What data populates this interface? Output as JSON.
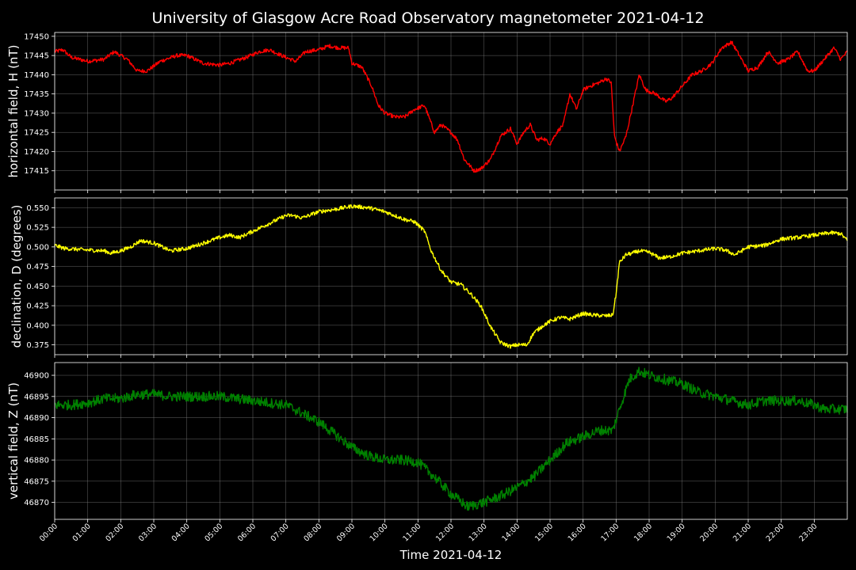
{
  "title": "University of Glasgow Acre Road Observatory magnetometer 2021-04-12",
  "chart_data": {
    "type": "line",
    "title": "University of Glasgow Acre Road Observatory magnetometer 2021-04-12",
    "xlabel": "Time 2021-04-12",
    "x_unit": "hour of day",
    "xlim": [
      0,
      24
    ],
    "x_tick_labels": [
      "00:00",
      "01:00",
      "02:00",
      "03:00",
      "04:00",
      "05:00",
      "06:00",
      "07:00",
      "08:00",
      "09:00",
      "10:00",
      "11:00",
      "12:00",
      "13:00",
      "14:00",
      "15:00",
      "16:00",
      "17:00",
      "18:00",
      "19:00",
      "20:00",
      "21:00",
      "22:00",
      "23:00"
    ],
    "grid": true,
    "panels": [
      {
        "ylabel": "horizontal field, H (nT)",
        "color": "#ff0000",
        "ylim": [
          17410,
          17451
        ],
        "yticks": [
          17415,
          17420,
          17425,
          17430,
          17435,
          17440,
          17445,
          17450
        ],
        "tick_labels": [
          "17415",
          "17420",
          "17425",
          "17430",
          "17435",
          "17440",
          "17445",
          "17450"
        ],
        "noise": 0.5,
        "x": [
          0,
          0.25,
          0.5,
          1.0,
          1.5,
          1.8,
          2.2,
          2.5,
          2.8,
          3.2,
          3.7,
          4.0,
          4.5,
          5.0,
          5.3,
          5.8,
          6.2,
          6.5,
          7.0,
          7.3,
          7.6,
          8.0,
          8.3,
          8.6,
          8.9,
          9.0,
          9.3,
          9.6,
          9.8,
          10.0,
          10.3,
          10.6,
          10.9,
          11.2,
          11.5,
          11.7,
          12.0,
          12.2,
          12.4,
          12.7,
          12.9,
          13.2,
          13.5,
          13.8,
          14.0,
          14.2,
          14.4,
          14.6,
          14.8,
          15.0,
          15.2,
          15.4,
          15.6,
          15.8,
          16.0,
          16.2,
          16.5,
          16.7,
          16.85,
          16.95,
          17.1,
          17.3,
          17.5,
          17.7,
          17.9,
          18.2,
          18.5,
          18.7,
          19.0,
          19.3,
          19.6,
          19.9,
          20.2,
          20.5,
          20.8,
          21.0,
          21.3,
          21.6,
          21.9,
          22.2,
          22.5,
          22.8,
          23.0,
          23.3,
          23.6,
          23.8,
          24.0
        ],
        "y": [
          17446,
          17446.5,
          17444.5,
          17443.5,
          17444,
          17446,
          17444,
          17441,
          17441,
          17443.5,
          17445,
          17445,
          17443,
          17442.5,
          17443,
          17444.5,
          17446,
          17446.5,
          17444.5,
          17443.5,
          17446,
          17446.5,
          17447.5,
          17447,
          17447,
          17443,
          17442,
          17437,
          17432,
          17430,
          17429,
          17429,
          17431,
          17432,
          17425,
          17427,
          17425,
          17423,
          17418,
          17415,
          17415.5,
          17418,
          17424,
          17426,
          17422,
          17425,
          17427,
          17423,
          17423.5,
          17422,
          17425,
          17427,
          17435,
          17431,
          17436,
          17437,
          17438,
          17439,
          17438,
          17424,
          17420,
          17424,
          17432,
          17440,
          17436,
          17435,
          17433,
          17434,
          17437,
          17440,
          17441,
          17443,
          17447,
          17448.5,
          17444,
          17441,
          17442,
          17446,
          17443,
          17444,
          17446,
          17441,
          17441,
          17444,
          17447,
          17444,
          17446
        ]
      },
      {
        "ylabel": "declination, D (degrees)",
        "color": "#ffff00",
        "ylim": [
          0.3625,
          0.5625
        ],
        "yticks": [
          0.375,
          0.4,
          0.425,
          0.45,
          0.475,
          0.5,
          0.525,
          0.55
        ],
        "tick_labels": [
          "0.375",
          "0.400",
          "0.425",
          "0.450",
          "0.475",
          "0.500",
          "0.525",
          "0.550"
        ],
        "noise": 0.0025,
        "x": [
          0,
          0.3,
          1.0,
          1.5,
          1.7,
          2.0,
          2.3,
          2.6,
          3.0,
          3.5,
          4.0,
          4.3,
          5.0,
          5.3,
          5.6,
          6.0,
          6.5,
          7.0,
          7.2,
          7.5,
          8.0,
          8.5,
          9.0,
          9.5,
          10.0,
          10.3,
          10.6,
          10.9,
          11.2,
          11.4,
          11.7,
          12.0,
          12.3,
          12.6,
          12.9,
          13.2,
          13.5,
          13.8,
          14.0,
          14.3,
          14.5,
          14.8,
          15.0,
          15.3,
          15.6,
          16.0,
          16.3,
          16.7,
          16.9,
          17.0,
          17.1,
          17.3,
          17.5,
          17.7,
          18.0,
          18.3,
          18.6,
          19.0,
          19.5,
          20.0,
          20.3,
          20.6,
          21.0,
          21.5,
          22.0,
          22.5,
          23.0,
          23.5,
          23.8,
          24.0
        ],
        "y": [
          0.502,
          0.498,
          0.496,
          0.495,
          0.492,
          0.495,
          0.5,
          0.508,
          0.505,
          0.495,
          0.498,
          0.502,
          0.512,
          0.515,
          0.512,
          0.52,
          0.53,
          0.54,
          0.54,
          0.537,
          0.545,
          0.548,
          0.552,
          0.55,
          0.545,
          0.54,
          0.535,
          0.532,
          0.52,
          0.495,
          0.47,
          0.455,
          0.452,
          0.44,
          0.425,
          0.398,
          0.378,
          0.373,
          0.375,
          0.375,
          0.39,
          0.4,
          0.405,
          0.41,
          0.408,
          0.415,
          0.413,
          0.412,
          0.413,
          0.44,
          0.48,
          0.49,
          0.492,
          0.495,
          0.493,
          0.486,
          0.487,
          0.492,
          0.495,
          0.498,
          0.496,
          0.49,
          0.5,
          0.502,
          0.51,
          0.512,
          0.515,
          0.518,
          0.517,
          0.508
        ]
      },
      {
        "ylabel": "vertical field, Z (nT)",
        "color": "#008000",
        "ylim": [
          46866,
          46903
        ],
        "yticks": [
          46870,
          46875,
          46880,
          46885,
          46890,
          46895,
          46900
        ],
        "tick_labels": [
          "46870",
          "46875",
          "46880",
          "46885",
          "46890",
          "46895",
          "46900"
        ],
        "noise": 1.2,
        "x": [
          0,
          0.5,
          1.0,
          1.5,
          2.0,
          2.5,
          3.0,
          3.5,
          4.0,
          4.5,
          5.0,
          5.5,
          6.0,
          6.5,
          7.0,
          7.5,
          8.0,
          8.5,
          9.0,
          9.5,
          10.0,
          10.5,
          11.0,
          11.5,
          12.0,
          12.5,
          13.0,
          13.5,
          14.0,
          14.5,
          15.0,
          15.5,
          16.0,
          16.5,
          16.9,
          17.1,
          17.4,
          17.7,
          18.0,
          18.5,
          19.0,
          19.5,
          20.0,
          20.5,
          21.0,
          21.5,
          22.0,
          22.5,
          23.0,
          23.3,
          23.6,
          24.0
        ],
        "y": [
          46893,
          46893,
          46893.5,
          46894.5,
          46894.5,
          46895.5,
          46895.5,
          46895,
          46895,
          46895,
          46895,
          46894.5,
          46894,
          46893.5,
          46893,
          46891,
          46889,
          46886,
          46883,
          46881,
          46880,
          46880,
          46879.5,
          46876,
          46872,
          46869,
          46870,
          46871.5,
          46873.5,
          46876,
          46880,
          46884,
          46885.5,
          46887,
          46887,
          46892,
          46899,
          46901,
          46900,
          46899,
          46898,
          46896,
          46895,
          46894,
          46893,
          46894,
          46894,
          46894,
          46893,
          46892,
          46892,
          46892
        ]
      }
    ]
  }
}
